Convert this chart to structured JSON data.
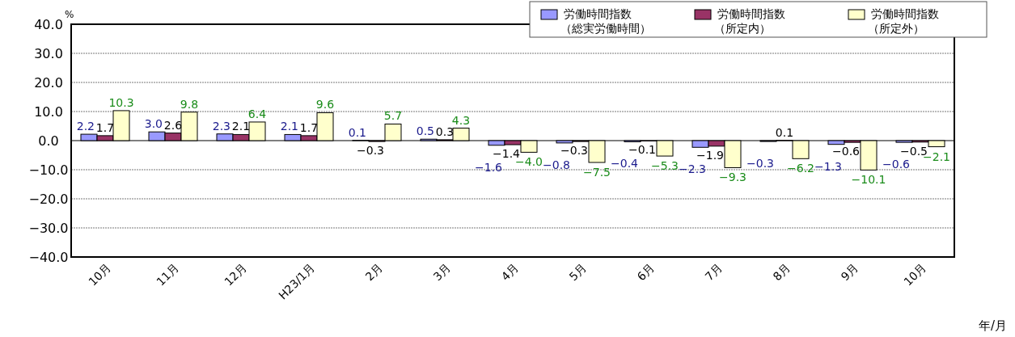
{
  "chart_data": {
    "type": "bar",
    "xlabel": "年/月",
    "annotations": [
      "%"
    ],
    "categories": [
      "10月",
      "11月",
      "12月",
      "H23/1月",
      "2月",
      "3月",
      "4月",
      "5月",
      "6月",
      "7月",
      "8月",
      "9月",
      "10月"
    ],
    "series": [
      {
        "name": "労働時間指数（総実労働時間）",
        "color": "#9999ff",
        "values": [
          2.2,
          3.0,
          2.3,
          2.1,
          0.1,
          0.5,
          -1.6,
          -0.8,
          -0.4,
          -2.3,
          -0.3,
          -1.3,
          -0.6
        ],
        "value_labels": [
          "2.2",
          "3.0",
          "2.3",
          "2.1",
          "0.1",
          "0.5",
          "−1.6",
          "−0.8",
          "−0.4",
          "−2.3",
          "−0.3",
          "−1.3",
          "−0.6"
        ]
      },
      {
        "name": "労働時間指数（所定内）",
        "color": "#993366",
        "values": [
          1.7,
          2.6,
          2.1,
          1.7,
          -0.3,
          0.3,
          -1.4,
          -0.3,
          -0.1,
          -1.9,
          0.1,
          -0.6,
          -0.5
        ],
        "value_labels": [
          "1.7",
          "2.6",
          "2.1",
          "1.7",
          "−0.3",
          "0.3",
          "−1.4",
          "−0.3",
          "−0.1",
          "−1.9",
          "0.1",
          "−0.6",
          "−0.5"
        ]
      },
      {
        "name": "労働時間指数（所定外）",
        "color": "#ffffcc",
        "values": [
          10.3,
          9.8,
          6.4,
          9.6,
          5.7,
          4.3,
          -4.0,
          -7.5,
          -5.3,
          -9.3,
          -6.2,
          -10.1,
          -2.1
        ],
        "value_labels": [
          "10.3",
          "9.8",
          "6.4",
          "9.6",
          "5.7",
          "4.3",
          "−4.0",
          "−7.5",
          "−5.3",
          "−9.3",
          "−6.2",
          "−10.1",
          "−2.1"
        ]
      }
    ],
    "ylim": [
      -40,
      40
    ],
    "yticks": [
      {
        "value": -40,
        "label": "−40.0"
      },
      {
        "value": -30,
        "label": "−30.0"
      },
      {
        "value": -20,
        "label": "−20.0"
      },
      {
        "value": -10,
        "label": "−10.0"
      },
      {
        "value": 0,
        "label": "0.0"
      },
      {
        "value": 10,
        "label": "10.0"
      },
      {
        "value": 20,
        "label": "20.0"
      },
      {
        "value": 30,
        "label": "30.0"
      },
      {
        "value": 40,
        "label": "40.0"
      }
    ],
    "grid": "y",
    "legend": "top right"
  }
}
